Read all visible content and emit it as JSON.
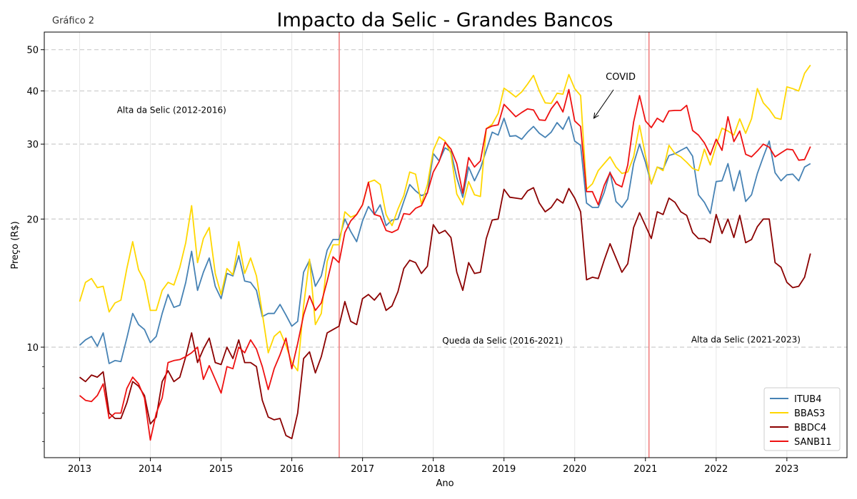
{
  "figure_label": "Gráfico 2",
  "chart_data": {
    "type": "line",
    "title": "Impacto da Selic - Grandes Bancos",
    "xlabel": "Ano",
    "ylabel": "Preço (R$)",
    "yscale": "log",
    "xlim": [
      2012.5,
      2023.85
    ],
    "ylim": [
      5.5,
      55
    ],
    "x_ticks": [
      2013,
      2014,
      2015,
      2016,
      2017,
      2018,
      2019,
      2020,
      2021,
      2022,
      2023
    ],
    "x_tick_labels": [
      "2013",
      "2014",
      "2015",
      "2016",
      "2017",
      "2018",
      "2019",
      "2020",
      "2021",
      "2022",
      "2023"
    ],
    "y_ticks": [
      10,
      20,
      30,
      40,
      50
    ],
    "y_tick_labels": [
      "10",
      "20",
      "30",
      "40",
      "50"
    ],
    "y_minor_ticks": [
      6,
      7,
      8,
      9
    ],
    "grid": "horizontal dashed at major y ticks; faint vertical at x ticks",
    "legend_position": "bottom-right",
    "vertical_lines": [
      {
        "x": 2016.67,
        "color": "#f08080"
      },
      {
        "x": 2021.05,
        "color": "#f08080"
      }
    ],
    "annotations": [
      {
        "text": "Alta da Selic (2012-2016)",
        "x": 2014.3,
        "y": 35.5
      },
      {
        "text": "Queda da Selic (2016-2021)",
        "x": 2018.98,
        "y": 10.2
      },
      {
        "text": "Alta da Selic (2021-2023)",
        "x": 2022.42,
        "y": 10.25
      },
      {
        "text": "COVID",
        "x": 2020.65,
        "y": 42.5,
        "arrow_to": [
          2020.27,
          34.5
        ]
      }
    ],
    "x": [
      2013.0,
      2013.083,
      2013.167,
      2013.25,
      2013.333,
      2013.417,
      2013.5,
      2013.583,
      2013.667,
      2013.75,
      2013.833,
      2013.917,
      2014.0,
      2014.083,
      2014.167,
      2014.25,
      2014.333,
      2014.417,
      2014.5,
      2014.583,
      2014.667,
      2014.75,
      2014.833,
      2014.917,
      2015.0,
      2015.083,
      2015.167,
      2015.25,
      2015.333,
      2015.417,
      2015.5,
      2015.583,
      2015.667,
      2015.75,
      2015.833,
      2015.917,
      2016.0,
      2016.083,
      2016.167,
      2016.25,
      2016.333,
      2016.417,
      2016.5,
      2016.583,
      2016.667,
      2016.75,
      2016.833,
      2016.917,
      2017.0,
      2017.083,
      2017.167,
      2017.25,
      2017.333,
      2017.417,
      2017.5,
      2017.583,
      2017.667,
      2017.75,
      2017.833,
      2017.917,
      2018.0,
      2018.083,
      2018.167,
      2018.25,
      2018.333,
      2018.417,
      2018.5,
      2018.583,
      2018.667,
      2018.75,
      2018.833,
      2018.917,
      2019.0,
      2019.083,
      2019.167,
      2019.25,
      2019.333,
      2019.417,
      2019.5,
      2019.583,
      2019.667,
      2019.75,
      2019.833,
      2019.917,
      2020.0,
      2020.083,
      2020.167,
      2020.25,
      2020.333,
      2020.417,
      2020.5,
      2020.583,
      2020.667,
      2020.75,
      2020.833,
      2020.917,
      2021.0,
      2021.083,
      2021.167,
      2021.25,
      2021.333,
      2021.417,
      2021.5,
      2021.583,
      2021.667,
      2021.75,
      2021.833,
      2021.917,
      2022.0,
      2022.083,
      2022.167,
      2022.25,
      2022.333,
      2022.417,
      2022.5,
      2022.583,
      2022.667,
      2022.75,
      2022.833,
      2022.917,
      2023.0,
      2023.083,
      2023.167,
      2023.25,
      2023.333
    ],
    "series": [
      {
        "name": "ITUB4",
        "color": "#4682b4",
        "values": [
          10.1,
          10.4,
          10.6,
          10.05,
          10.8,
          9.15,
          9.3,
          9.25,
          10.5,
          12.0,
          11.3,
          11.0,
          10.25,
          10.6,
          12.0,
          13.3,
          12.4,
          12.55,
          14.2,
          16.8,
          13.6,
          15.0,
          16.2,
          13.9,
          13.0,
          14.9,
          14.7,
          16.4,
          14.3,
          14.2,
          13.6,
          11.8,
          12.0,
          12.0,
          12.6,
          11.9,
          11.2,
          11.5,
          15.0,
          16.0,
          13.9,
          14.7,
          16.9,
          17.9,
          17.9,
          20.0,
          18.7,
          17.7,
          19.8,
          21.4,
          20.5,
          21.6,
          19.3,
          19.9,
          20.0,
          22.0,
          24.1,
          23.3,
          22.7,
          23.0,
          28.5,
          27.4,
          29.4,
          28.8,
          25.0,
          22.5,
          26.5,
          24.6,
          26.3,
          29.0,
          32.0,
          31.5,
          34.5,
          31.3,
          31.4,
          30.8,
          32.0,
          33.0,
          31.8,
          31.1,
          32.0,
          33.7,
          32.5,
          34.8,
          30.5,
          29.8,
          21.8,
          21.3,
          21.3,
          23.1,
          25.8,
          22.0,
          21.3,
          22.3,
          27.0,
          30.0,
          27.2,
          24.2,
          26.5,
          26.2,
          28.2,
          28.5,
          29.0,
          29.5,
          28.1,
          22.8,
          21.9,
          20.6,
          24.5,
          24.6,
          27.0,
          23.3,
          26.0,
          22.0,
          22.8,
          25.6,
          28.0,
          30.5,
          25.7,
          24.6,
          25.4,
          25.5,
          24.6,
          26.5,
          27.0
        ]
      },
      {
        "name": "BBAS3",
        "color": "#ffd700",
        "values": [
          12.8,
          14.2,
          14.5,
          13.8,
          13.9,
          12.1,
          12.7,
          12.9,
          15.3,
          17.7,
          15.2,
          14.3,
          12.2,
          12.2,
          13.6,
          14.2,
          14.0,
          15.4,
          17.6,
          21.5,
          15.8,
          18.0,
          19.1,
          14.9,
          13.3,
          15.3,
          14.8,
          17.7,
          14.9,
          16.2,
          14.7,
          12.0,
          9.7,
          10.6,
          10.9,
          10.1,
          9.2,
          8.8,
          12.5,
          16.1,
          11.3,
          12.0,
          15.9,
          17.4,
          17.4,
          20.8,
          20.2,
          20.5,
          21.6,
          24.4,
          24.7,
          24.1,
          20.5,
          19.3,
          21.1,
          22.7,
          25.8,
          25.5,
          21.7,
          24.1,
          29.0,
          31.2,
          30.5,
          28.5,
          22.9,
          21.6,
          24.5,
          22.8,
          22.6,
          32.6,
          33.4,
          35.4,
          40.6,
          39.7,
          38.7,
          39.8,
          41.5,
          43.5,
          40.0,
          37.5,
          37.4,
          39.5,
          39.3,
          43.7,
          40.5,
          39.0,
          23.5,
          24.2,
          26.0,
          27.0,
          28.0,
          26.5,
          25.6,
          25.8,
          28.0,
          33.2,
          28.2,
          24.2,
          26.5,
          26.0,
          29.8,
          28.5,
          28.0,
          27.2,
          26.3,
          26.0,
          29.2,
          26.8,
          29.8,
          32.7,
          32.2,
          31.5,
          34.4,
          31.8,
          34.4,
          40.5,
          37.5,
          36.2,
          34.6,
          34.3,
          40.9,
          40.5,
          40.0,
          44.0,
          46.0
        ]
      },
      {
        "name": "BBDC4",
        "color": "#8b0000",
        "values": [
          8.5,
          8.3,
          8.6,
          8.5,
          8.75,
          7.0,
          6.8,
          6.8,
          7.4,
          8.3,
          8.1,
          7.7,
          6.6,
          6.85,
          8.3,
          8.8,
          8.3,
          8.5,
          9.5,
          10.8,
          9.2,
          9.9,
          10.5,
          9.2,
          9.1,
          10.0,
          9.4,
          10.4,
          9.2,
          9.2,
          9.0,
          7.5,
          6.85,
          6.75,
          6.8,
          6.2,
          6.1,
          7.0,
          9.4,
          9.75,
          8.7,
          9.5,
          10.8,
          11.0,
          11.2,
          12.8,
          11.5,
          11.3,
          13.0,
          13.3,
          12.9,
          13.4,
          12.2,
          12.5,
          13.5,
          15.3,
          16.0,
          15.8,
          14.9,
          15.5,
          19.4,
          18.5,
          18.8,
          18.1,
          15.0,
          13.6,
          15.8,
          14.9,
          15.0,
          18.0,
          19.9,
          20.0,
          23.5,
          22.5,
          22.4,
          22.3,
          23.3,
          23.7,
          21.8,
          20.8,
          21.3,
          22.3,
          21.8,
          23.6,
          22.4,
          20.8,
          14.4,
          14.6,
          14.5,
          16.0,
          17.5,
          16.2,
          15.0,
          15.7,
          19.1,
          20.7,
          19.3,
          18.0,
          20.8,
          20.5,
          22.4,
          21.9,
          20.8,
          20.4,
          18.6,
          18.0,
          18.0,
          17.6,
          20.5,
          18.5,
          20.0,
          18.1,
          20.4,
          17.6,
          17.9,
          19.2,
          20.0,
          20.0,
          15.8,
          15.4,
          14.2,
          13.8,
          13.9,
          14.6,
          16.6
        ]
      },
      {
        "name": "SANB11",
        "color": "#ee1111",
        "values": [
          7.7,
          7.5,
          7.45,
          7.7,
          8.2,
          6.8,
          7.0,
          7.0,
          8.0,
          8.5,
          8.2,
          7.6,
          6.05,
          7.0,
          7.6,
          9.2,
          9.3,
          9.35,
          9.5,
          9.7,
          10.0,
          8.4,
          9.05,
          8.4,
          7.8,
          9.0,
          8.9,
          10.0,
          9.7,
          10.4,
          9.9,
          9.0,
          7.95,
          8.9,
          9.6,
          10.5,
          8.9,
          10.2,
          11.9,
          13.2,
          12.2,
          12.7,
          14.3,
          16.3,
          15.8,
          18.6,
          19.8,
          20.5,
          21.6,
          24.4,
          20.5,
          20.3,
          18.8,
          18.6,
          18.9,
          20.6,
          20.5,
          21.2,
          21.5,
          23.1,
          25.8,
          27.3,
          30.3,
          29.2,
          27.0,
          23.0,
          27.9,
          26.5,
          27.4,
          32.6,
          33.1,
          33.3,
          37.2,
          36.0,
          34.8,
          35.6,
          36.3,
          36.1,
          34.2,
          34.1,
          36.3,
          37.8,
          35.7,
          40.3,
          34.0,
          33.0,
          23.2,
          23.2,
          21.6,
          24.0,
          25.7,
          24.2,
          23.8,
          26.8,
          33.8,
          39.0,
          34.0,
          32.8,
          34.5,
          33.8,
          35.9,
          36.0,
          36.0,
          37.0,
          32.3,
          31.5,
          30.2,
          28.3,
          30.8,
          29.0,
          34.8,
          30.4,
          32.2,
          28.4,
          28.0,
          28.9,
          30.0,
          29.5,
          28.0,
          28.6,
          29.2,
          29.1,
          27.5,
          27.6,
          29.6
        ]
      }
    ]
  }
}
